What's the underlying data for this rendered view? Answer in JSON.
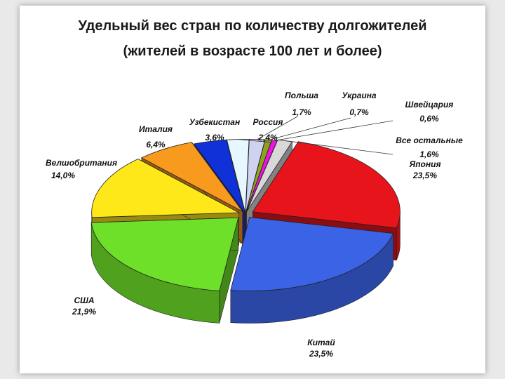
{
  "chart_data": {
    "type": "pie",
    "title": "Удельный вес стран по количеству долгожителей",
    "subtitle": "(жителей в возрасте 100 лет и более)",
    "slices": [
      {
        "name": "Япония",
        "value": 23.5,
        "label": "23,5%",
        "color": "#e8141c"
      },
      {
        "name": "Китай",
        "value": 23.5,
        "label": "23,5%",
        "color": "#3a63e6"
      },
      {
        "name": "США",
        "value": 21.9,
        "label": "21,9%",
        "color": "#6fe02a"
      },
      {
        "name": "Велшобритания",
        "value": 14.0,
        "label": "14,0%",
        "color": "#ffe81a"
      },
      {
        "name": "Италия",
        "value": 6.4,
        "label": "6,4%",
        "color": "#f79a1e"
      },
      {
        "name": "Узбекистан",
        "value": 3.6,
        "label": "3,6%",
        "color": "#1030d8"
      },
      {
        "name": "Россия",
        "value": 2.4,
        "label": "2,4%",
        "color": "#e6f7ff"
      },
      {
        "name": "Польша",
        "value": 1.7,
        "label": "1,7%",
        "color": "#cfd2f0"
      },
      {
        "name": "Украина",
        "value": 0.7,
        "label": "0,7%",
        "color": "#8ea21c"
      },
      {
        "name": "Швейцария",
        "value": 0.6,
        "label": "0,6%",
        "color": "#f012e0"
      },
      {
        "name": "Все остальные",
        "value": 1.6,
        "label": "1,6%",
        "color": "#d8d8d8"
      }
    ]
  }
}
